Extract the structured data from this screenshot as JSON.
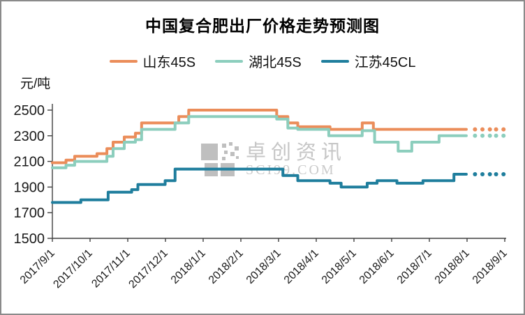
{
  "title": "中国复合肥出厂价格走势预测图",
  "watermark": {
    "line1": "卓创资讯",
    "line2": "SCI99.COM"
  },
  "chart_data": {
    "type": "line",
    "title": "中国复合肥出厂价格走势预测图",
    "ylabel": "元/吨",
    "ylim": [
      1500,
      2500
    ],
    "y_ticks": [
      2500,
      2300,
      2100,
      1900,
      1700,
      1500
    ],
    "x_tick_labels": [
      "2017/9/1",
      "2017/10/1",
      "2017/11/1",
      "2017/12/1",
      "2018/1/1",
      "2018/2/1",
      "2018/3/1",
      "2018/4/1",
      "2018/5/1",
      "2018/6/1",
      "2018/7/1",
      "2018/8/1",
      "2018/9/1"
    ],
    "x_span_days": 365,
    "grid": false,
    "legend_position": "top",
    "solid_end_day": 334,
    "forecast_dot_days": [
      341,
      347,
      353,
      358,
      364
    ],
    "series": [
      {
        "name": "山东45S",
        "key": "shandong-45s",
        "color": "#EB8D5A",
        "forecast_value": 2350,
        "steps": [
          [
            0,
            2090
          ],
          [
            11,
            2110
          ],
          [
            18,
            2140
          ],
          [
            36,
            2160
          ],
          [
            44,
            2200
          ],
          [
            49,
            2250
          ],
          [
            58,
            2290
          ],
          [
            67,
            2320
          ],
          [
            72,
            2400
          ],
          [
            102,
            2450
          ],
          [
            110,
            2500
          ],
          [
            181,
            2450
          ],
          [
            190,
            2400
          ],
          [
            198,
            2370
          ],
          [
            224,
            2350
          ],
          [
            250,
            2400
          ],
          [
            259,
            2350
          ]
        ]
      },
      {
        "name": "湖北45S",
        "key": "hubei-45s",
        "color": "#8CCEBD",
        "forecast_value": 2300,
        "steps": [
          [
            0,
            2050
          ],
          [
            11,
            2070
          ],
          [
            18,
            2100
          ],
          [
            44,
            2140
          ],
          [
            49,
            2200
          ],
          [
            58,
            2250
          ],
          [
            67,
            2270
          ],
          [
            72,
            2350
          ],
          [
            99,
            2400
          ],
          [
            110,
            2450
          ],
          [
            181,
            2430
          ],
          [
            190,
            2360
          ],
          [
            198,
            2350
          ],
          [
            223,
            2300
          ],
          [
            250,
            2340
          ],
          [
            260,
            2250
          ],
          [
            279,
            2180
          ],
          [
            290,
            2250
          ],
          [
            312,
            2300
          ]
        ]
      },
      {
        "name": "江苏45CL",
        "key": "jiangsu-45cl",
        "color": "#1F7E9D",
        "forecast_value": 2000,
        "steps": [
          [
            0,
            1780
          ],
          [
            23,
            1800
          ],
          [
            45,
            1860
          ],
          [
            64,
            1880
          ],
          [
            69,
            1920
          ],
          [
            91,
            1950
          ],
          [
            99,
            2040
          ],
          [
            186,
            1990
          ],
          [
            198,
            1950
          ],
          [
            224,
            1930
          ],
          [
            233,
            1900
          ],
          [
            254,
            1930
          ],
          [
            262,
            1950
          ],
          [
            278,
            1930
          ],
          [
            299,
            1950
          ],
          [
            324,
            2000
          ]
        ]
      }
    ]
  }
}
